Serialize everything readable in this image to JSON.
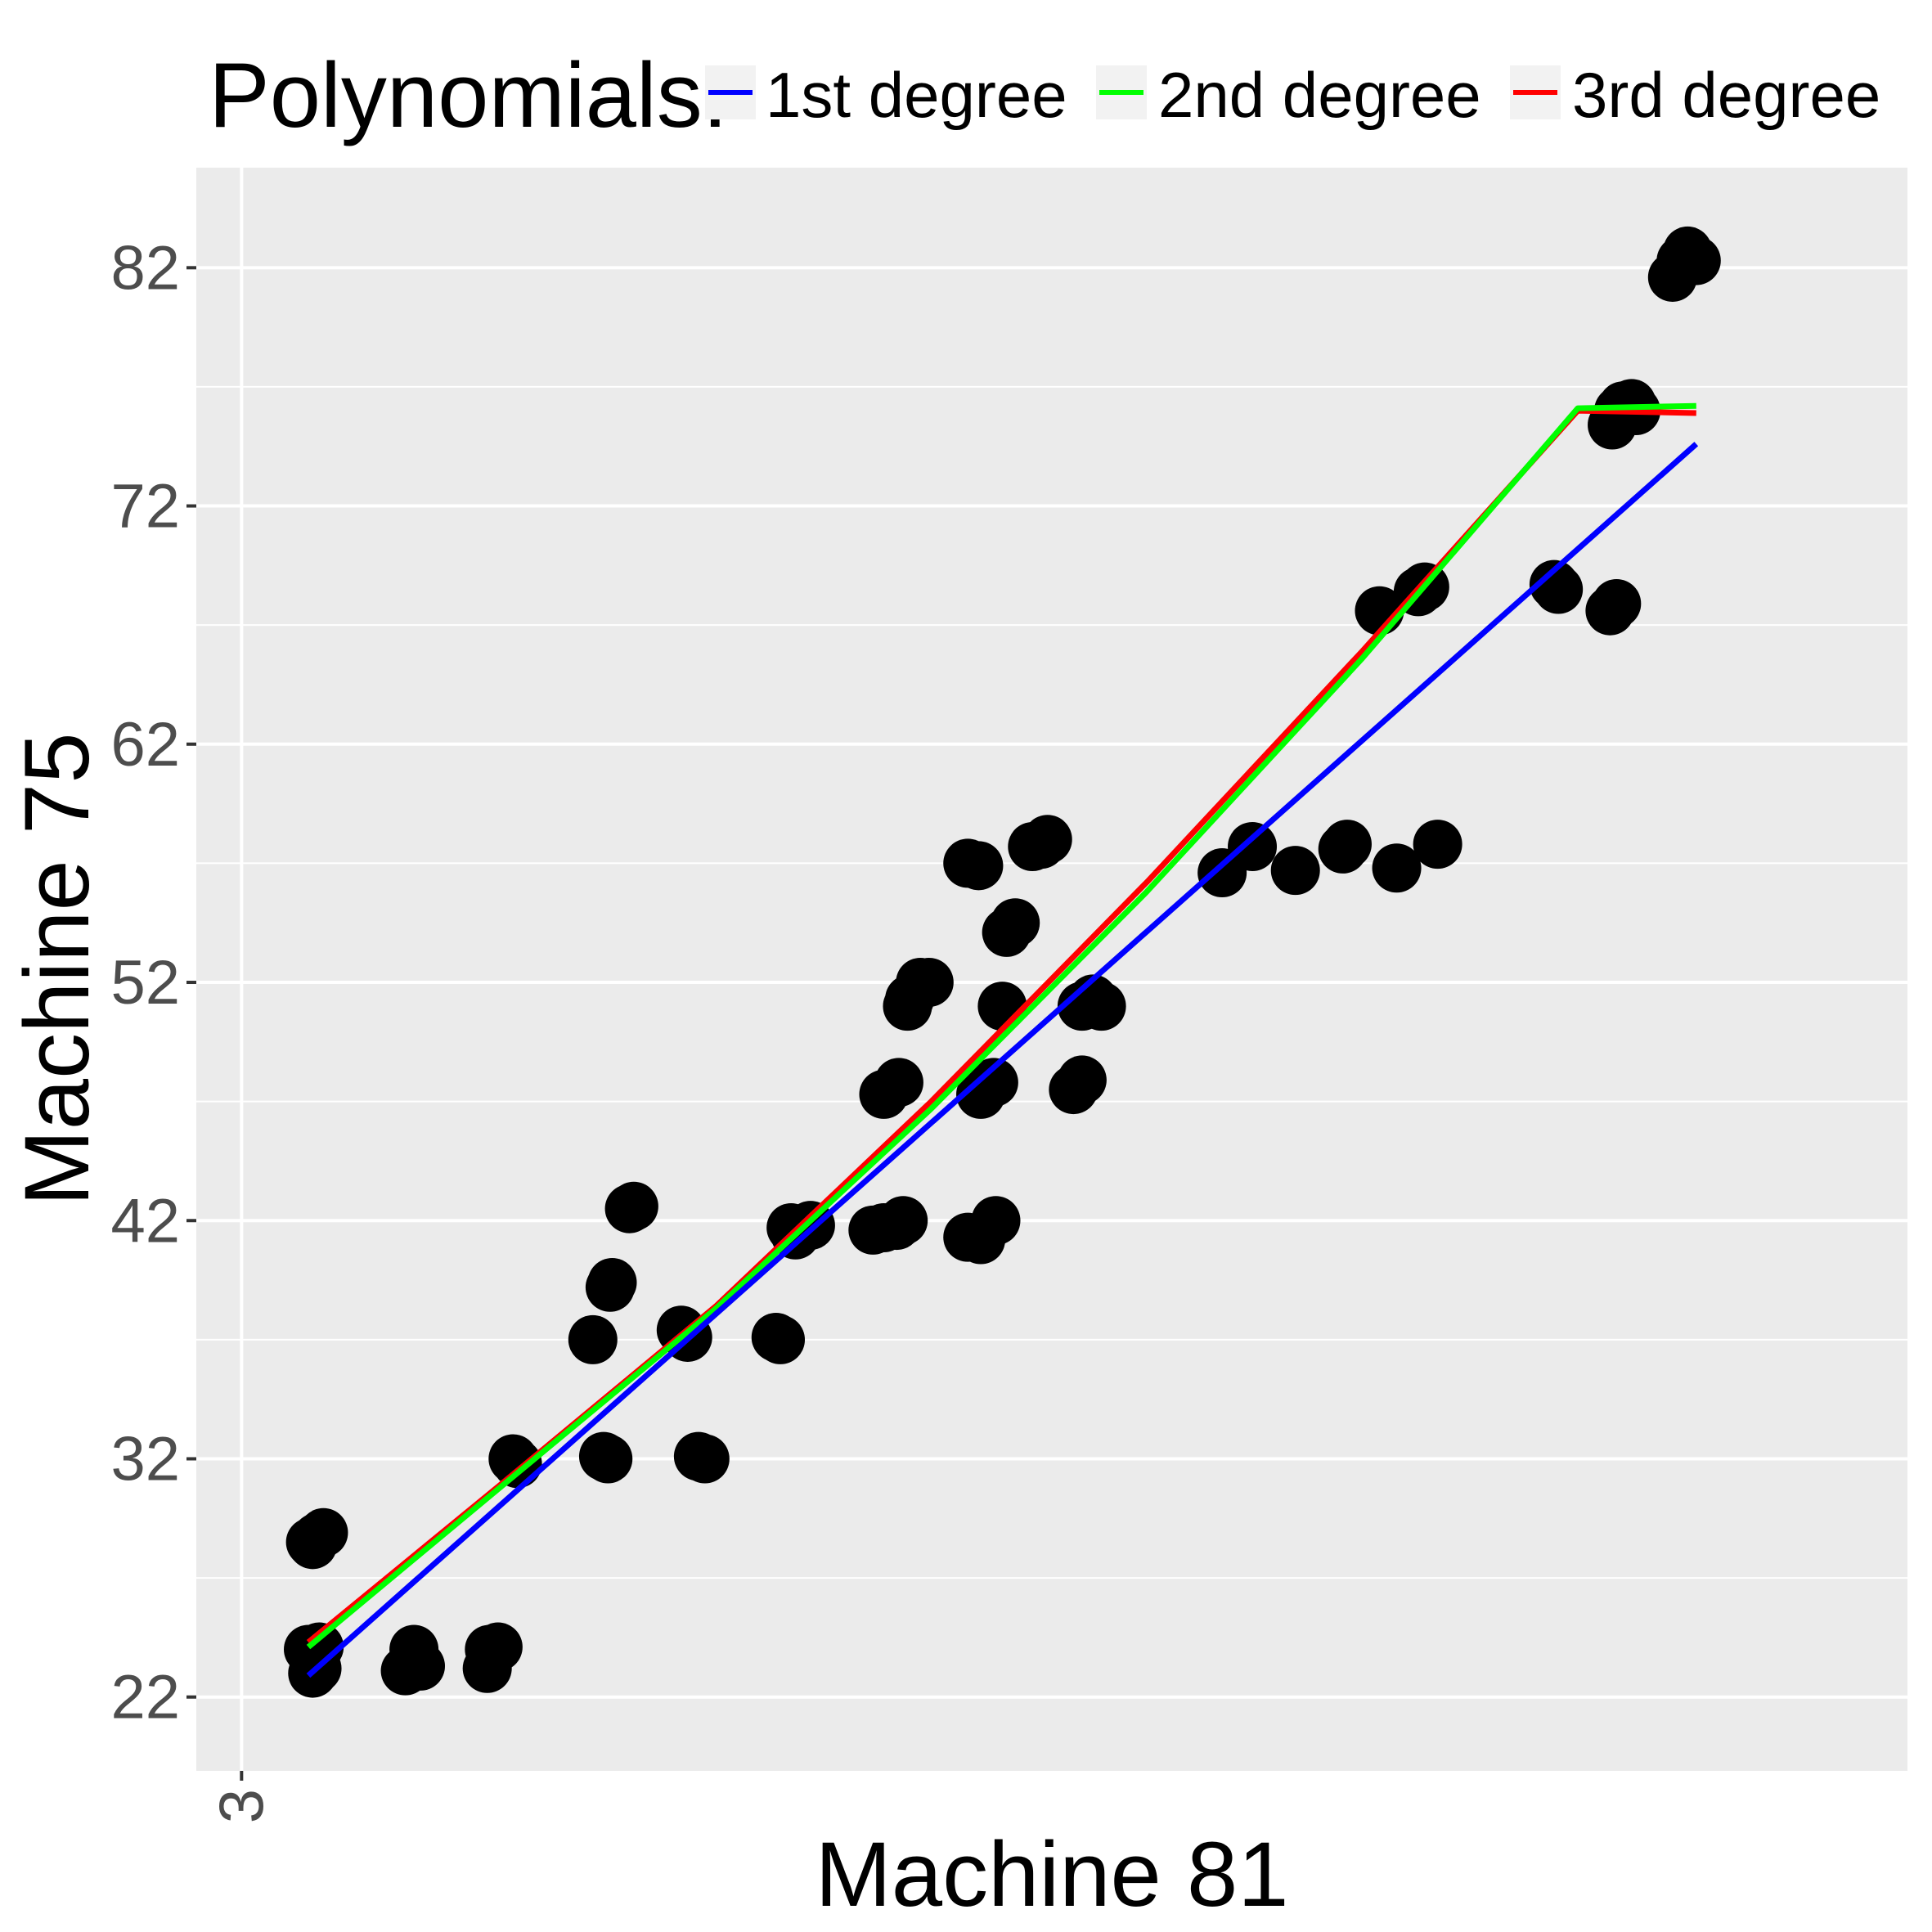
{
  "chart_data": {
    "type": "scatter",
    "title": "",
    "xlabel": "Machine 81",
    "ylabel": "Machine 75",
    "x_ticks": [
      3
    ],
    "y_ticks": [
      22,
      32,
      42,
      52,
      62,
      72,
      82
    ],
    "xlim": [
      0.9,
      80.3
    ],
    "ylim": [
      18.9,
      86.2
    ],
    "grid": true,
    "legend": {
      "title": "Polynomials:",
      "position": "top",
      "entries": [
        {
          "label": "1st degree",
          "color": "#0000ff"
        },
        {
          "label": "2nd degree",
          "color": "#00ff00"
        },
        {
          "label": "3rd degree",
          "color": "#ff0000"
        }
      ]
    },
    "points": [
      [
        6.2,
        28.5
      ],
      [
        6.5,
        28.7
      ],
      [
        6.3,
        28.4
      ],
      [
        6.8,
        28.9
      ],
      [
        6.1,
        24.0
      ],
      [
        6.6,
        24.1
      ],
      [
        6.3,
        23.0
      ],
      [
        6.5,
        23.2
      ],
      [
        11.0,
        24.0
      ],
      [
        10.6,
        23.1
      ],
      [
        11.3,
        23.3
      ],
      [
        14.5,
        24.0
      ],
      [
        14.9,
        24.1
      ],
      [
        14.4,
        23.2
      ],
      [
        15.6,
        32.0
      ],
      [
        15.8,
        31.8
      ],
      [
        19.3,
        37.0
      ],
      [
        20.1,
        39.2
      ],
      [
        20.2,
        39.4
      ],
      [
        20.0,
        32.0
      ],
      [
        19.8,
        32.1
      ],
      [
        21.0,
        42.5
      ],
      [
        21.2,
        42.6
      ],
      [
        23.7,
        37.1
      ],
      [
        23.4,
        37.4
      ],
      [
        24.5,
        32.0
      ],
      [
        24.2,
        32.1
      ],
      [
        27.8,
        37.1
      ],
      [
        28.0,
        37.0
      ],
      [
        28.5,
        41.7
      ],
      [
        28.7,
        41.4
      ],
      [
        29.4,
        41.8
      ],
      [
        32.3,
        41.6
      ],
      [
        32.8,
        41.7
      ],
      [
        33.4,
        41.8
      ],
      [
        33.7,
        42.0
      ],
      [
        32.8,
        47.3
      ],
      [
        33.5,
        47.8
      ],
      [
        33.9,
        51.0
      ],
      [
        34.0,
        51.3
      ],
      [
        34.5,
        52.0
      ],
      [
        34.9,
        52.0
      ],
      [
        36.7,
        41.3
      ],
      [
        37.3,
        41.2
      ],
      [
        38.0,
        42.0
      ],
      [
        36.7,
        57.0
      ],
      [
        37.2,
        56.9
      ],
      [
        37.3,
        47.3
      ],
      [
        37.6,
        47.7
      ],
      [
        37.9,
        47.8
      ],
      [
        38.3,
        51.0
      ],
      [
        38.5,
        54.1
      ],
      [
        38.9,
        54.5
      ],
      [
        39.7,
        57.7
      ],
      [
        40.1,
        57.8
      ],
      [
        40.4,
        58.0
      ],
      [
        41.6,
        47.5
      ],
      [
        42.0,
        47.9
      ],
      [
        42.0,
        51.0
      ],
      [
        42.5,
        51.3
      ],
      [
        42.9,
        51.0
      ],
      [
        48.5,
        56.6
      ],
      [
        49.9,
        57.7
      ],
      [
        51.9,
        56.7
      ],
      [
        54.1,
        57.6
      ],
      [
        54.3,
        57.8
      ],
      [
        56.6,
        56.8
      ],
      [
        58.5,
        57.8
      ],
      [
        55.8,
        67.6
      ],
      [
        57.6,
        68.4
      ],
      [
        57.9,
        68.6
      ],
      [
        63.9,
        68.7
      ],
      [
        64.1,
        68.5
      ],
      [
        66.5,
        67.6
      ],
      [
        66.8,
        67.9
      ],
      [
        66.6,
        75.4
      ],
      [
        66.9,
        76.0
      ],
      [
        67.1,
        76.2
      ],
      [
        67.5,
        76.3
      ],
      [
        67.7,
        76.0
      ],
      [
        69.4,
        81.6
      ],
      [
        69.8,
        82.3
      ],
      [
        70.1,
        82.7
      ],
      [
        70.5,
        82.3
      ]
    ],
    "fits": [
      {
        "name": "1st degree",
        "color": "#0000ff",
        "x": [
          6.1,
          70.5
        ],
        "y": [
          22.9,
          74.6
        ]
      },
      {
        "name": "2nd degree",
        "color": "#00ff00",
        "x": [
          6.1,
          15,
          25,
          35,
          45,
          55,
          65,
          70.5
        ],
        "y": [
          24.1,
          30.8,
          38.3,
          46.7,
          55.8,
          65.6,
          76.1,
          76.2
        ]
      },
      {
        "name": "3rd degree",
        "color": "#ff0000",
        "x": [
          6.1,
          15,
          25,
          35,
          45,
          55,
          65,
          70.5
        ],
        "y": [
          24.3,
          30.9,
          38.4,
          47.0,
          56.2,
          65.9,
          76.0,
          75.9
        ]
      }
    ]
  }
}
